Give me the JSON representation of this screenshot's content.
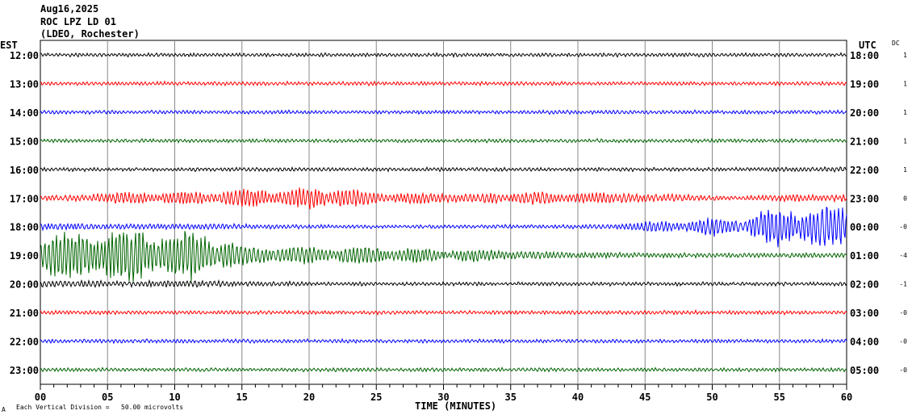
{
  "header": {
    "date": "Aug16,2025",
    "station": "ROC LPZ LD 01",
    "network": "(LDEO, Rochester)"
  },
  "chart_data": {
    "type": "line",
    "subtype": "helicorder",
    "left_axis_title": "EST",
    "right_axis_title": "UTC",
    "dc_title": "DC",
    "xlabel": "TIME (MINUTES)",
    "xlim": [
      0,
      60
    ],
    "x_tick_labels": [
      "00",
      "05",
      "10",
      "15",
      "20",
      "25",
      "30",
      "35",
      "40",
      "45",
      "50",
      "55",
      "60"
    ],
    "scale_note": "Each Vertical Division =   50.00 microvolts",
    "corner_mark": "A",
    "grid": true,
    "amplitude_bin_minutes": 5,
    "rows": [
      {
        "est": "12:00",
        "utc": "18:00",
        "dc": "1",
        "color": "#000000",
        "amp_uV": [
          3,
          3,
          3,
          3,
          3,
          3,
          3,
          3,
          3,
          3,
          3,
          3
        ]
      },
      {
        "est": "13:00",
        "utc": "19:00",
        "dc": "1",
        "color": "#ff0000",
        "amp_uV": [
          3,
          3,
          3,
          3,
          3,
          3,
          3,
          3,
          3,
          3,
          3,
          3
        ]
      },
      {
        "est": "14:00",
        "utc": "20:00",
        "dc": "1",
        "color": "#0000ff",
        "amp_uV": [
          3,
          3,
          3,
          3,
          3,
          3,
          3,
          3,
          3,
          3,
          3,
          3
        ]
      },
      {
        "est": "15:00",
        "utc": "21:00",
        "dc": "1",
        "color": "#006400",
        "amp_uV": [
          3,
          3,
          3,
          3,
          3,
          3,
          3,
          3,
          3,
          3,
          3,
          3
        ]
      },
      {
        "est": "16:00",
        "utc": "22:00",
        "dc": "1",
        "color": "#000000",
        "amp_uV": [
          3,
          3,
          3,
          3,
          3,
          3,
          3,
          3,
          3,
          3,
          3,
          4
        ]
      },
      {
        "est": "17:00",
        "utc": "23:00",
        "dc": "0",
        "color": "#ff0000",
        "amp_uV": [
          5,
          9,
          11,
          15,
          18,
          10,
          8,
          10,
          9,
          7,
          4,
          6
        ]
      },
      {
        "est": "18:00",
        "utc": "00:00",
        "dc": "-0",
        "color": "#0000ff",
        "amp_uV": [
          6,
          5,
          5,
          4,
          3,
          3,
          3,
          3,
          4,
          9,
          15,
          35
        ]
      },
      {
        "est": "19:00",
        "utc": "01:00",
        "dc": "-4",
        "color": "#006400",
        "amp_uV": [
          40,
          45,
          40,
          16,
          14,
          14,
          10,
          7,
          5,
          4,
          4,
          4
        ]
      },
      {
        "est": "20:00",
        "utc": "02:00",
        "dc": "-1",
        "color": "#000000",
        "amp_uV": [
          6,
          5,
          6,
          4,
          3,
          3,
          3,
          3,
          3,
          3,
          3,
          3
        ]
      },
      {
        "est": "21:00",
        "utc": "03:00",
        "dc": "-0",
        "color": "#ff0000",
        "amp_uV": [
          3,
          3,
          3,
          3,
          3,
          3,
          3,
          3,
          3,
          3,
          3,
          3
        ]
      },
      {
        "est": "22:00",
        "utc": "04:00",
        "dc": "-0",
        "color": "#0000ff",
        "amp_uV": [
          3,
          3,
          3,
          3,
          3,
          3,
          3,
          3,
          3,
          3,
          3,
          3
        ]
      },
      {
        "est": "23:00",
        "utc": "05:00",
        "dc": "-0",
        "color": "#006400",
        "amp_uV": [
          3,
          3,
          3,
          3,
          3,
          3,
          3,
          3,
          3,
          3,
          3,
          3
        ]
      }
    ]
  }
}
